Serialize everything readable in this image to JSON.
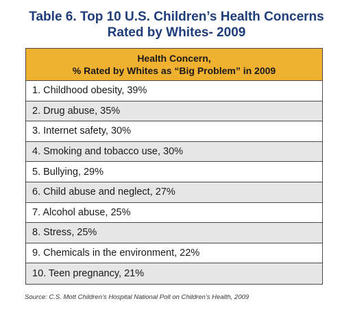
{
  "title": {
    "line1": "Table 6. Top 10 U.S. Children’s Health Concerns",
    "line2": "Rated by Whites- 2009"
  },
  "table": {
    "header_line1": "Health Concern,",
    "header_line2": "% Rated by Whites as “Big Problem” in 2009",
    "rows": [
      "1. Childhood obesity, 39%",
      "2. Drug abuse, 35%",
      "3. Internet safety, 30%",
      "4. Smoking and tobacco use, 30%",
      "5. Bullying, 29%",
      "6. Child abuse and neglect, 27%",
      "7. Alcohol abuse, 25%",
      "8. Stress,  25%",
      "9. Chemicals in the environment, 22%",
      "10. Teen pregnancy, 21%"
    ]
  },
  "source": "Source: C.S. Mott Children’s Hospital National Poll on Children’s Health, 2009",
  "colors": {
    "title": "#1f3d7a",
    "header_bg": "#f0b030",
    "alt_row_bg": "#e6e6e6"
  }
}
